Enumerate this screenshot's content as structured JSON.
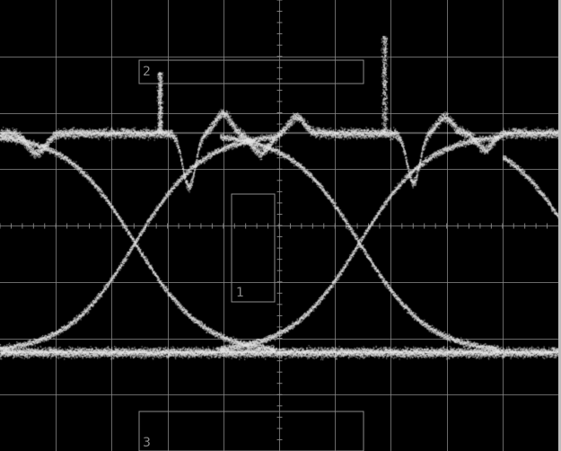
{
  "scope": {
    "background_color": "#000000",
    "graticule_color": "#8c8c8c",
    "trace_color": "#e6e6e6",
    "divisions": {
      "horizontal": 10,
      "vertical": 8
    },
    "mask_labels": [
      "1",
      "2",
      "3"
    ]
  }
}
